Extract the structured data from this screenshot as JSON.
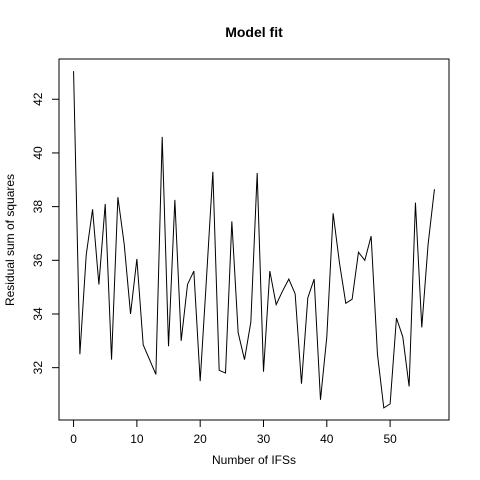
{
  "chart_data": {
    "type": "line",
    "title": "Model fit",
    "xlabel": "Number of IFSs",
    "ylabel": "Residual sum of squares",
    "xlim": [
      -2.3,
      59.3
    ],
    "ylim": [
      30.05,
      43.5
    ],
    "xticks": [
      0,
      10,
      20,
      30,
      40,
      50
    ],
    "yticks": [
      32,
      34,
      36,
      38,
      40,
      42
    ],
    "grid": false,
    "series": [
      {
        "color": "#000000",
        "x": [
          0,
          1,
          2,
          3,
          4,
          5,
          6,
          7,
          8,
          9,
          10,
          11,
          12,
          13,
          14,
          15,
          16,
          17,
          18,
          19,
          20,
          21,
          22,
          23,
          24,
          25,
          26,
          27,
          28,
          29,
          30,
          31,
          32,
          33,
          34,
          35,
          36,
          37,
          38,
          39,
          40,
          41,
          42,
          43,
          44,
          45,
          46,
          47,
          48,
          49,
          50,
          51,
          52,
          53,
          54,
          55,
          56,
          57
        ],
        "y": [
          43.05,
          32.5,
          36.2,
          37.9,
          35.1,
          38.1,
          32.3,
          38.35,
          36.6,
          34.0,
          36.05,
          32.85,
          32.3,
          31.75,
          40.6,
          32.8,
          38.25,
          33.0,
          35.1,
          35.6,
          31.5,
          35.35,
          39.3,
          31.9,
          31.8,
          37.45,
          33.3,
          32.3,
          33.7,
          39.25,
          31.85,
          35.6,
          34.35,
          34.85,
          35.3,
          34.75,
          31.4,
          34.6,
          35.3,
          30.8,
          33.15,
          37.75,
          35.9,
          34.4,
          34.55,
          36.3,
          36.0,
          36.9,
          32.5,
          30.5,
          30.65,
          33.85,
          33.15,
          31.3,
          38.15,
          33.5,
          36.6,
          38.65
        ]
      }
    ]
  }
}
